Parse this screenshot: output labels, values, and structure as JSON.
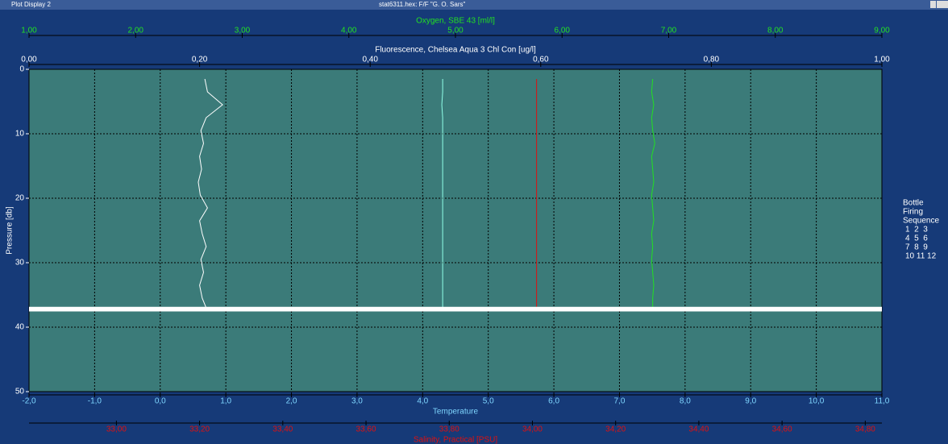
{
  "window_title": "Plot Display 2",
  "file_title": "stat6311.hex: F/F \"G. O. Sars\"",
  "chart_data": {
    "type": "line",
    "background": "#3b7b79",
    "grid": true,
    "y_label": "Pressure [db]",
    "ylim": [
      0,
      50
    ],
    "yticks": [
      0,
      10,
      20,
      30,
      40,
      50
    ],
    "y": [
      1.5,
      3.5,
      5.5,
      7.5,
      9.5,
      11.5,
      13.5,
      15.5,
      17.5,
      19.5,
      21.5,
      23.5,
      25.5,
      27.5,
      29.5,
      31.5,
      33.5,
      35.5,
      37
    ],
    "x_axes": [
      {
        "label": "Oxygen, SBE 43 [ml/l]",
        "color": "#22e022",
        "side": "top",
        "xlim": [
          1,
          9
        ],
        "xticks": [
          {
            "value": 1,
            "label": "1,00"
          },
          {
            "value": 2,
            "label": "2,00"
          },
          {
            "value": 3,
            "label": "3,00"
          },
          {
            "value": 4,
            "label": "4,00"
          },
          {
            "value": 5,
            "label": "5,00"
          },
          {
            "value": 6,
            "label": "6,00"
          },
          {
            "value": 7,
            "label": "7,00"
          },
          {
            "value": 8,
            "label": "8,00"
          },
          {
            "value": 9,
            "label": "9,00"
          }
        ],
        "values": [
          6.85,
          6.84,
          6.86,
          6.84,
          6.85,
          6.87,
          6.84,
          6.85,
          6.86,
          6.84,
          6.85,
          6.86,
          6.84,
          6.85,
          6.84,
          6.85,
          6.86,
          6.85,
          6.85
        ]
      },
      {
        "label": "Fluorescence, Chelsea Aqua 3 Chl Con [ug/l]",
        "color": "#ffffff",
        "trace_color": "#8fffe8",
        "side": "top",
        "xlim": [
          0,
          1
        ],
        "xticks": [
          {
            "value": 0,
            "label": "0,00"
          },
          {
            "value": 0.2,
            "label": "0,20"
          },
          {
            "value": 0.4,
            "label": "0,40"
          },
          {
            "value": 0.6,
            "label": "0,60"
          },
          {
            "value": 0.8,
            "label": "0,80"
          },
          {
            "value": 1,
            "label": "1,00"
          }
        ],
        "values": [
          0.485,
          0.485,
          0.484,
          0.485,
          0.485,
          0.485,
          0.485,
          0.485,
          0.485,
          0.485,
          0.485,
          0.485,
          0.485,
          0.485,
          0.485,
          0.485,
          0.485,
          0.485,
          0.485
        ]
      },
      {
        "label": "Temperature",
        "color": "#7fd6ff",
        "trace_color": "#ffffff",
        "side": "bottom",
        "xlim": [
          -2,
          11
        ],
        "xticks": [
          {
            "value": -2,
            "label": "-2,0"
          },
          {
            "value": -1,
            "label": "-1,0"
          },
          {
            "value": 0,
            "label": "0,0"
          },
          {
            "value": 1,
            "label": "1,0"
          },
          {
            "value": 2,
            "label": "2,0"
          },
          {
            "value": 3,
            "label": "3,0"
          },
          {
            "value": 4,
            "label": "4,0"
          },
          {
            "value": 5,
            "label": "5,0"
          },
          {
            "value": 6,
            "label": "6,0"
          },
          {
            "value": 7,
            "label": "7,0"
          },
          {
            "value": 8,
            "label": "8,0"
          },
          {
            "value": 9,
            "label": "9,0"
          },
          {
            "value": 10,
            "label": "10,0"
          },
          {
            "value": 11,
            "label": "11,0"
          }
        ],
        "values": [
          0.68,
          0.72,
          0.95,
          0.7,
          0.62,
          0.66,
          0.6,
          0.63,
          0.58,
          0.61,
          0.72,
          0.6,
          0.64,
          0.7,
          0.62,
          0.66,
          0.6,
          0.64,
          0.7
        ]
      },
      {
        "label": "Salinity, Practical [PSU]",
        "color": "#e01010",
        "side": "bottom",
        "xlim": [
          32.79,
          34.84
        ],
        "xticks": [
          {
            "value": 33,
            "label": "33,00"
          },
          {
            "value": 33.2,
            "label": "33,20"
          },
          {
            "value": 33.4,
            "label": "33,40"
          },
          {
            "value": 33.6,
            "label": "33,60"
          },
          {
            "value": 33.8,
            "label": "33,80"
          },
          {
            "value": 34,
            "label": "34,00"
          },
          {
            "value": 34.2,
            "label": "34,20"
          },
          {
            "value": 34.4,
            "label": "34,40"
          },
          {
            "value": 34.6,
            "label": "34,60"
          },
          {
            "value": 34.8,
            "label": "34,80"
          }
        ],
        "values": [
          34.01,
          34.01,
          34.01,
          34.01,
          34.01,
          34.01,
          34.01,
          34.01,
          34.01,
          34.01,
          34.01,
          34.01,
          34.01,
          34.01,
          34.01,
          34.01,
          34.01,
          34.01,
          34.01
        ]
      }
    ],
    "bottle_pressures": [
      36.9,
      37,
      37,
      37.1,
      37.1,
      37.2,
      37.2,
      37.3,
      37.3,
      37.4,
      37.4,
      37.5
    ],
    "legend_title": [
      "Bottle",
      "Firing",
      "Sequence"
    ],
    "legend_rows": [
      "1  2  3",
      "4  5  6",
      "7  8  9",
      "10 11 12"
    ]
  }
}
